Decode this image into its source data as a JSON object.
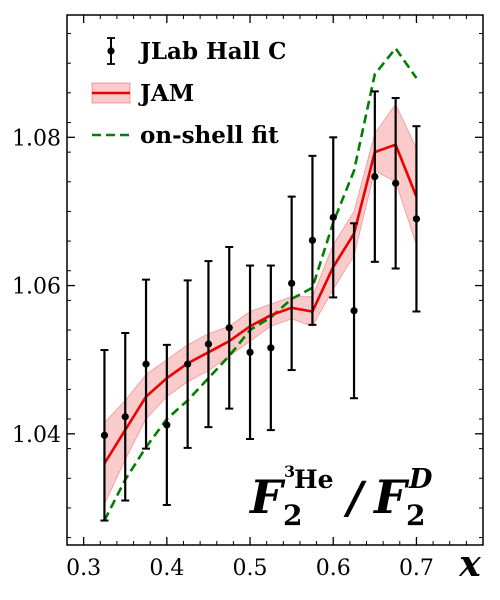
{
  "chart_data": {
    "type": "line",
    "xlabel": "x",
    "ylabel": "",
    "xlim": [
      0.28,
      0.78
    ],
    "ylim": [
      1.025,
      1.0965
    ],
    "xticks": [
      0.3,
      0.4,
      0.5,
      0.6,
      0.7
    ],
    "xtick_labels": [
      "0.3",
      "0.4",
      "0.5",
      "0.6",
      "0.7"
    ],
    "yticks": [
      1.04,
      1.06,
      1.08
    ],
    "ytick_labels": [
      "1.04",
      "1.06",
      "1.08"
    ],
    "grid": false,
    "legend_position": "top-left",
    "annotation": {
      "base": "F",
      "sub": "2",
      "sup": "3",
      "sup_suffix": "He",
      "slash": "/",
      "base2": "F",
      "sub2": "2",
      "sup2": "D"
    },
    "series": [
      {
        "name": "JLab Hall C",
        "kind": "errorbar",
        "color": "#000000",
        "x": [
          0.325,
          0.35,
          0.375,
          0.4,
          0.425,
          0.45,
          0.475,
          0.5,
          0.525,
          0.55,
          0.575,
          0.6,
          0.625,
          0.65,
          0.675,
          0.7
        ],
        "y": [
          1.0398,
          1.0423,
          1.0494,
          1.0412,
          1.0494,
          1.0521,
          1.0543,
          1.051,
          1.0516,
          1.0603,
          1.0661,
          1.0692,
          1.0566,
          1.0747,
          1.0738,
          1.069
        ],
        "yerr": [
          0.0115,
          0.0113,
          0.0114,
          0.0108,
          0.0113,
          0.0112,
          0.0109,
          0.0117,
          0.0111,
          0.0117,
          0.0114,
          0.0108,
          0.0118,
          0.0115,
          0.0115,
          0.0125
        ]
      },
      {
        "name": "JAM",
        "kind": "line_band",
        "color": "#ee0000",
        "band_color": "#f4a0a0",
        "x": [
          0.325,
          0.35,
          0.375,
          0.4,
          0.425,
          0.45,
          0.475,
          0.5,
          0.525,
          0.55,
          0.575,
          0.6,
          0.625,
          0.65,
          0.675,
          0.7
        ],
        "y": [
          1.036,
          1.0405,
          1.045,
          1.0475,
          1.0495,
          1.051,
          1.0525,
          1.0545,
          1.056,
          1.057,
          1.0565,
          1.0625,
          1.067,
          1.078,
          1.079,
          1.072
        ],
        "y_low": [
          1.0305,
          1.0365,
          1.042,
          1.045,
          1.047,
          1.0485,
          1.0505,
          1.0525,
          1.0545,
          1.0555,
          1.0545,
          1.0595,
          1.064,
          1.0755,
          1.074,
          1.0655
        ],
        "y_high": [
          1.0415,
          1.0445,
          1.048,
          1.05,
          1.052,
          1.0535,
          1.0545,
          1.0565,
          1.0575,
          1.0585,
          1.0585,
          1.0655,
          1.07,
          1.0805,
          1.0845,
          1.0785
        ]
      },
      {
        "name": "on-shell fit",
        "kind": "dashed_line",
        "color": "#008000",
        "x": [
          0.325,
          0.35,
          0.375,
          0.4,
          0.425,
          0.45,
          0.475,
          0.5,
          0.525,
          0.55,
          0.575,
          0.6,
          0.625,
          0.65,
          0.675,
          0.7
        ],
        "y": [
          1.0283,
          1.0338,
          1.0382,
          1.042,
          1.0445,
          1.0475,
          1.0505,
          1.054,
          1.0557,
          1.0582,
          1.0597,
          1.0685,
          1.0755,
          1.0885,
          1.092,
          1.088
        ]
      }
    ]
  }
}
